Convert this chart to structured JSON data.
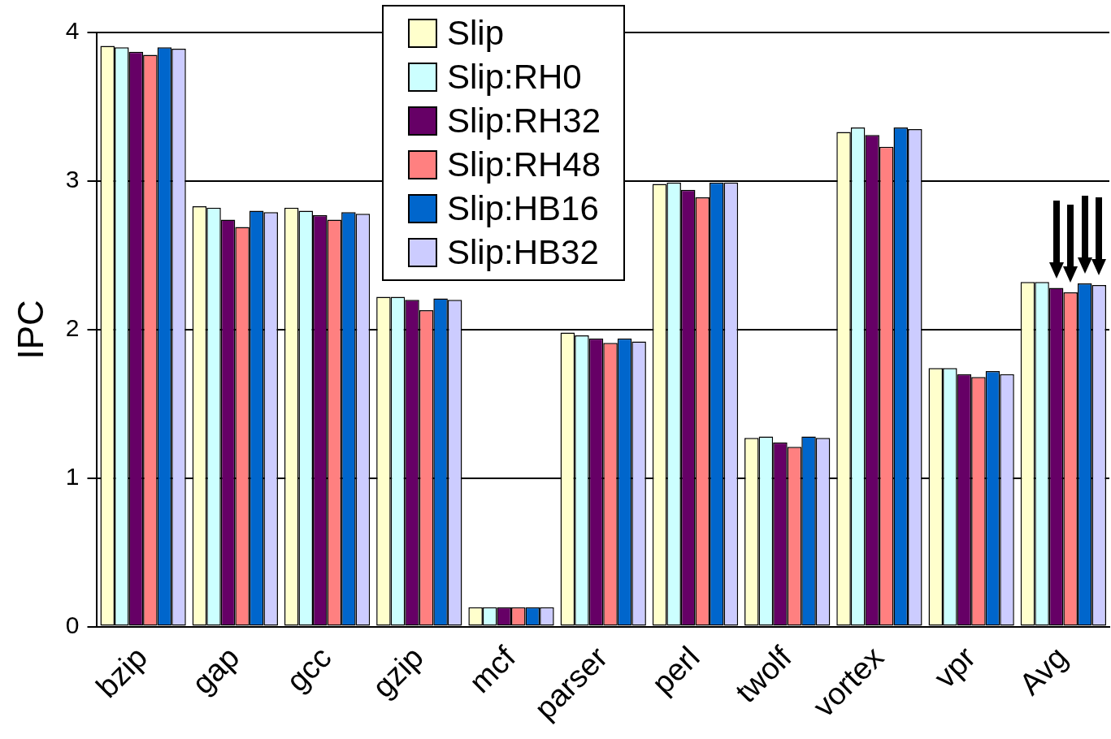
{
  "chart_data": {
    "type": "bar",
    "ylabel": "IPC",
    "categories": [
      "bzip",
      "gap",
      "gcc",
      "gzip",
      "mcf",
      "parser",
      "perl",
      "twolf",
      "vortex",
      "vpr",
      "Avg"
    ],
    "series": [
      {
        "name": "Slip",
        "color": "#ffffcc",
        "values": [
          3.91,
          2.83,
          2.82,
          2.22,
          0.13,
          1.98,
          2.98,
          1.27,
          3.33,
          1.74,
          2.32
        ]
      },
      {
        "name": "Slip:RH0",
        "color": "#ccffff",
        "values": [
          3.9,
          2.82,
          2.8,
          2.22,
          0.13,
          1.96,
          2.99,
          1.28,
          3.36,
          1.74,
          2.32
        ]
      },
      {
        "name": "Slip:RH32",
        "color": "#660066",
        "values": [
          3.87,
          2.74,
          2.77,
          2.2,
          0.13,
          1.94,
          2.94,
          1.24,
          3.31,
          1.7,
          2.28
        ]
      },
      {
        "name": "Slip:RH48",
        "color": "#ff8080",
        "values": [
          3.85,
          2.69,
          2.74,
          2.13,
          0.13,
          1.91,
          2.89,
          1.21,
          3.23,
          1.68,
          2.25
        ]
      },
      {
        "name": "Slip:HB16",
        "color": "#0066cc",
        "values": [
          3.9,
          2.8,
          2.79,
          2.21,
          0.13,
          1.94,
          2.99,
          1.28,
          3.36,
          1.72,
          2.31
        ]
      },
      {
        "name": "Slip:HB32",
        "color": "#ccccff",
        "values": [
          3.89,
          2.79,
          2.78,
          2.2,
          0.13,
          1.92,
          2.99,
          1.27,
          3.35,
          1.7,
          2.3
        ]
      }
    ],
    "ylim": [
      0,
      4
    ],
    "yticks": [
      0,
      1,
      2,
      3,
      4
    ],
    "grid": "y",
    "legend": "top"
  }
}
